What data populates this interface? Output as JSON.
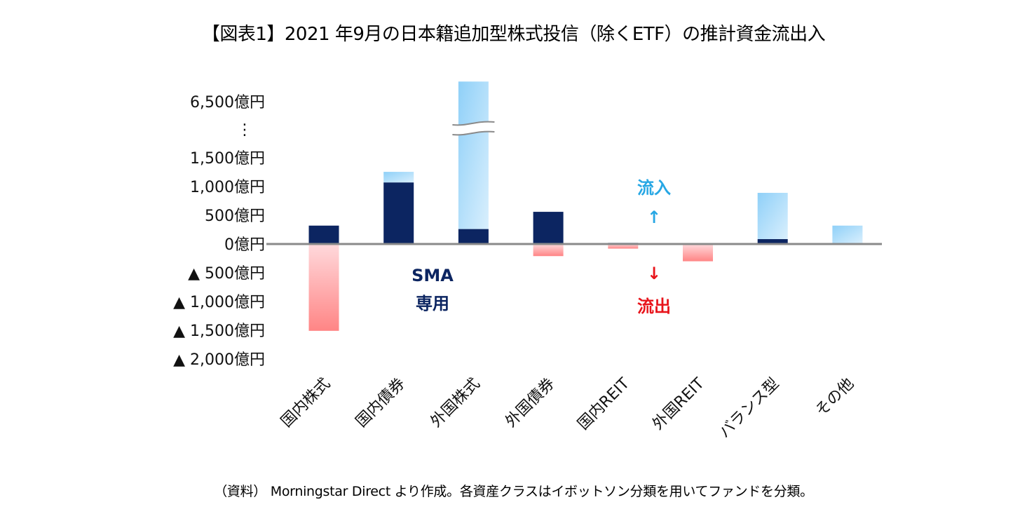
{
  "title": "【図表1】2021 年9月の日本籍追加型株式投信（除くETF）の推計資金流出入",
  "source": "（資料） Morningstar Direct より作成。各資産クラスはイボットソン分類を用いてファンドを分類。",
  "chart_data": {
    "type": "bar",
    "stacked": true,
    "title": "【図表1】2021 年9月の日本籍追加型株式投信（除くETF）の推計資金流出入",
    "xlabel": "",
    "ylabel": "",
    "unit": "億円",
    "categories": [
      "国内株式",
      "国内債券",
      "外国株式",
      "外国債券",
      "国内REIT",
      "外国REIT",
      "バランス型",
      "その他"
    ],
    "series": [
      {
        "name": "SMA専用",
        "color": "#0c2561",
        "values": [
          320,
          1070,
          260,
          560,
          20,
          0,
          85,
          15
        ]
      },
      {
        "name": "流入",
        "color": "#8fd0f8",
        "values": [
          0,
          185,
          6590,
          0,
          0,
          0,
          805,
          305
        ]
      },
      {
        "name": "流出",
        "color": "#ff8a8a",
        "values": [
          -1510,
          0,
          0,
          -210,
          -80,
          -300,
          0,
          0
        ]
      }
    ],
    "yticks": [
      {
        "value": 6500,
        "label": "6,500億円"
      },
      {
        "value": 1500,
        "label": "1,500億円"
      },
      {
        "value": 1000,
        "label": "1,000億円"
      },
      {
        "value": 500,
        "label": "500億円"
      },
      {
        "value": 0,
        "label": "0億円"
      },
      {
        "value": -500,
        "label": "▲ 500億円"
      },
      {
        "value": -1000,
        "label": "▲ 1,000億円"
      },
      {
        "value": -1500,
        "label": "▲ 1,500億円"
      },
      {
        "value": -2000,
        "label": "▲ 2,000億円"
      }
    ],
    "axis_break": {
      "from": 1500,
      "to": 6500,
      "ellipsis_label": "⋮"
    },
    "ylim": [
      -2000,
      6850
    ],
    "grid": false,
    "legend": "none",
    "annotations": {
      "sma": [
        "SMA",
        "専用"
      ],
      "inflow": "流入",
      "inflow_arrow": "↑",
      "outflow": "流出",
      "outflow_arrow": "↓"
    }
  }
}
